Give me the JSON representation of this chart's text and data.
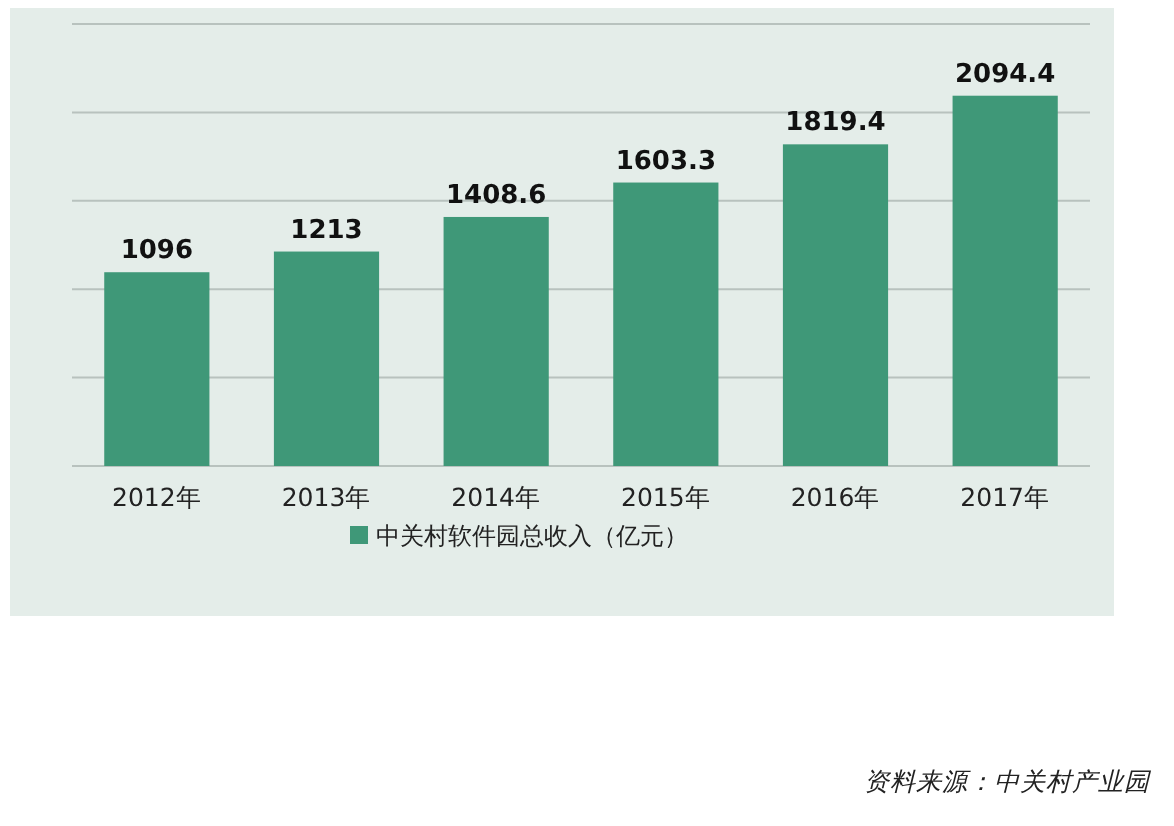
{
  "chart_data": {
    "type": "bar",
    "categories": [
      "2012年",
      "2013年",
      "2014年",
      "2015年",
      "2016年",
      "2017年"
    ],
    "series": [
      {
        "name": "中关村软件园总收入（亿元）",
        "color": "#3f9878",
        "values": [
          1096,
          1213,
          1408.6,
          1603.3,
          1819.4,
          2094.4
        ]
      }
    ],
    "ylim": [
      0,
      2500
    ],
    "yticks": [
      {
        "value": 0,
        "label": null
      },
      {
        "value": 500,
        "label": null
      },
      {
        "value": 1000,
        "label": null
      },
      {
        "value": 1500,
        "label": null
      },
      {
        "value": 2000,
        "label": null
      },
      {
        "value": 2500,
        "label": null
      }
    ],
    "tick_labels": "x",
    "grid": "y",
    "legend": "bottom",
    "data_labels": true,
    "annotations": [
      "资料来源：中关村产业园"
    ]
  }
}
